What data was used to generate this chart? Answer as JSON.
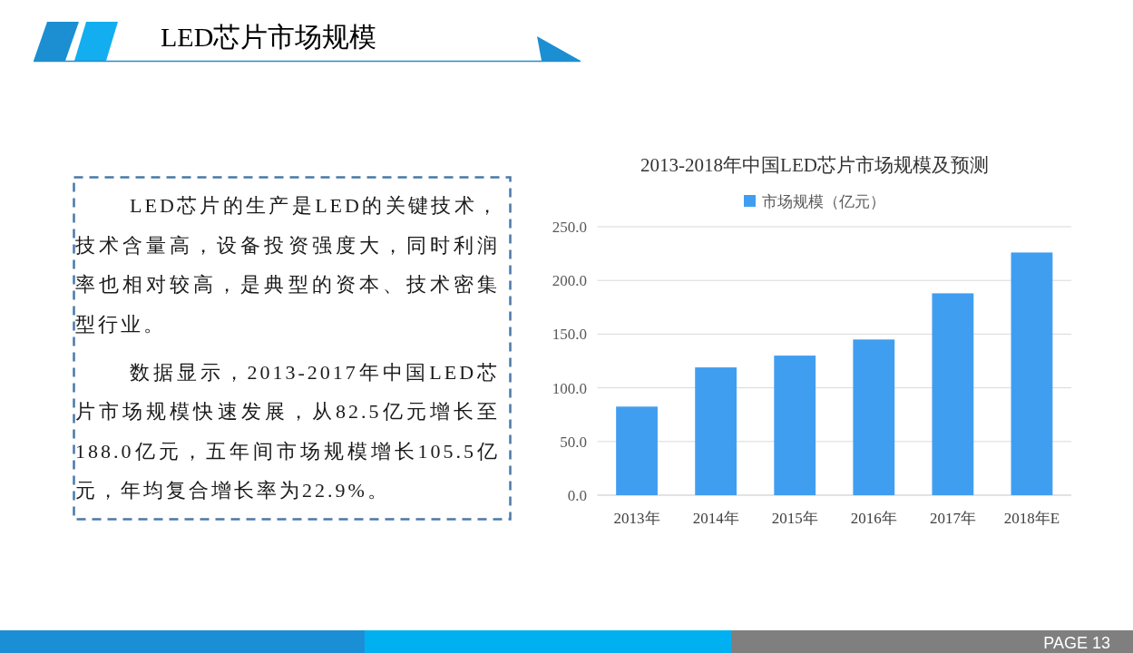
{
  "chart_data": {
    "type": "bar",
    "title": "2013-2018年中国LED芯片市场规模及预测",
    "categories": [
      "2013年",
      "2014年",
      "2015年",
      "2016年",
      "2017年",
      "2018年E"
    ],
    "series": [
      {
        "name": "市场规模（亿元）",
        "color": "#409ef0",
        "values": [
          82.5,
          119,
          130,
          145,
          188.0,
          226
        ]
      }
    ],
    "ylim": [
      0,
      250
    ],
    "yticks": [
      {
        "value": 0,
        "label": "0.0"
      },
      {
        "value": 50,
        "label": "50.0"
      },
      {
        "value": 100,
        "label": "100.0"
      },
      {
        "value": 150,
        "label": "150.0"
      },
      {
        "value": 200,
        "label": "200.0"
      },
      {
        "value": 250,
        "label": "250.0"
      }
    ],
    "grid": "y",
    "legend": "top",
    "annotations": [
      "LED芯片市场规模",
      "LED芯片的生产是LED的关键技术，技术含量高，设备投资强度大，同时利润率也相对较高，是典型的资本、技术密集型行业。",
      "数据显示，2013-2017年中国LED芯片市场规模快速发展，从82.5亿元增长至188.0亿元，五年间市场规模增长105.5亿元，年均复合增长率为22.9%。",
      "PAGE 13"
    ]
  }
}
